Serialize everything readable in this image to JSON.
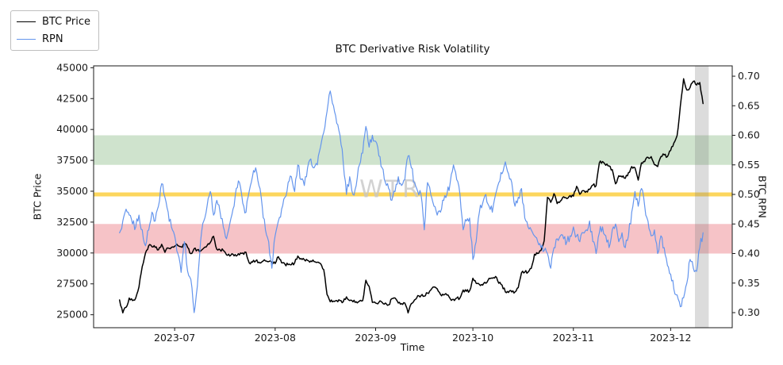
{
  "watermark": "WTR",
  "chart_data": {
    "type": "line",
    "title": "BTC Derivative Risk Volatility",
    "xlabel": "Time",
    "ylabel_left": "BTC Price",
    "ylabel_right": "BTC RPN",
    "legend_position": "upper-left-outside",
    "grid": false,
    "x_range": [
      "2023-06-06",
      "2023-12-20"
    ],
    "ylim_left": [
      23950,
      45150
    ],
    "ylim_right": [
      0.2745,
      0.7175
    ],
    "x_ticks": [
      {
        "date": "2023-07-01",
        "label": "2023-07"
      },
      {
        "date": "2023-08-01",
        "label": "2023-08"
      },
      {
        "date": "2023-09-01",
        "label": "2023-09"
      },
      {
        "date": "2023-10-01",
        "label": "2023-10"
      },
      {
        "date": "2023-11-01",
        "label": "2023-11"
      },
      {
        "date": "2023-12-01",
        "label": "2023-12"
      }
    ],
    "y_ticks_left": [
      25000,
      27500,
      30000,
      32500,
      35000,
      37500,
      40000,
      42500,
      45000
    ],
    "y_ticks_right": [
      0.3,
      0.35,
      0.4,
      0.45,
      0.5,
      0.55,
      0.6,
      0.65,
      0.7
    ],
    "h_bands": [
      {
        "name": "upper-green-zone",
        "axis": "right",
        "from": 0.55,
        "to": 0.6,
        "color": "#cfe3cd"
      },
      {
        "name": "lower-red-zone",
        "axis": "right",
        "from": 0.4,
        "to": 0.45,
        "color": "#f6c3c7"
      }
    ],
    "h_line": {
      "name": "mid-yellow-line",
      "axis": "right",
      "value": 0.5,
      "color": "#fcd65d",
      "width": 5
    },
    "v_band": {
      "name": "recent-period-highlight",
      "from": "2023-12-08T12:00:00",
      "to": "2023-12-12T18:00:00",
      "color": "rgba(128,128,128,0.28)"
    },
    "series": [
      {
        "name": "BTC Price",
        "axis": "left",
        "color": "#000000",
        "width": 1.5,
        "jitter": 130,
        "start": "2023-06-14",
        "step_days": 1,
        "values": [
          26200,
          25150,
          25600,
          26350,
          26150,
          26350,
          27250,
          28900,
          30000,
          30600,
          30500,
          30450,
          30250,
          30700,
          30050,
          30400,
          30450,
          30550,
          30600,
          30500,
          30750,
          30450,
          29950,
          30350,
          30250,
          30150,
          30400,
          30600,
          30850,
          31350,
          30300,
          30250,
          30200,
          29850,
          29750,
          29900,
          29750,
          29850,
          30000,
          30050,
          29200,
          29250,
          29350,
          29250,
          29300,
          29350,
          29300,
          29250,
          29150,
          29700,
          29200,
          29100,
          29050,
          29050,
          29200,
          29750,
          29550,
          29450,
          29400,
          29350,
          29300,
          29250,
          29150,
          28650,
          26650,
          26050,
          26100,
          26150,
          26150,
          26050,
          26450,
          26150,
          26050,
          26050,
          26100,
          26150,
          27800,
          27300,
          26000,
          25950,
          26000,
          26000,
          25950,
          25800,
          26300,
          26350,
          25950,
          25900,
          25950,
          25150,
          25900,
          26200,
          26550,
          26550,
          26500,
          26750,
          27000,
          27250,
          27100,
          26650,
          26600,
          26600,
          26300,
          26250,
          26350,
          26350,
          27000,
          26900,
          26950,
          27950,
          27550,
          27450,
          27400,
          27550,
          27950,
          27950,
          28100,
          27550,
          27400,
          26850,
          26800,
          26850,
          26850,
          27200,
          28400,
          28450,
          28450,
          28750,
          29900,
          29950,
          30200,
          31000,
          34500,
          34100,
          34800,
          34000,
          34200,
          34550,
          34400,
          34650,
          34600,
          35400,
          34750,
          35050,
          35000,
          35150,
          35500,
          35450,
          37300,
          37400,
          37100,
          37050,
          36750,
          35600,
          36250,
          36150,
          36050,
          36500,
          37000,
          36900,
          35900,
          37300,
          37400,
          37750,
          37800,
          37150,
          37000,
          37800,
          37950,
          37800,
          38300,
          38900,
          39500,
          41900,
          44100,
          43200,
          43400,
          43900,
          43600,
          43800,
          42100
        ]
      },
      {
        "name": "RPN",
        "axis": "right",
        "color": "#6495ED",
        "width": 1.2,
        "jitter": 0.0075,
        "start": "2023-06-14",
        "step_days": 1,
        "values": [
          0.435,
          0.455,
          0.475,
          0.465,
          0.45,
          0.445,
          0.465,
          0.44,
          0.413,
          0.44,
          0.47,
          0.455,
          0.48,
          0.518,
          0.495,
          0.47,
          0.445,
          0.43,
          0.4,
          0.368,
          0.42,
          0.37,
          0.356,
          0.3,
          0.345,
          0.42,
          0.455,
          0.48,
          0.505,
          0.465,
          0.49,
          0.47,
          0.445,
          0.425,
          0.45,
          0.475,
          0.51,
          0.52,
          0.485,
          0.47,
          0.505,
          0.53,
          0.545,
          0.515,
          0.48,
          0.44,
          0.42,
          0.375,
          0.43,
          0.455,
          0.475,
          0.495,
          0.52,
          0.53,
          0.505,
          0.55,
          0.525,
          0.515,
          0.545,
          0.56,
          0.545,
          0.55,
          0.58,
          0.605,
          0.64,
          0.675,
          0.65,
          0.62,
          0.6,
          0.555,
          0.5,
          0.53,
          0.5,
          0.515,
          0.55,
          0.57,
          0.615,
          0.58,
          0.6,
          0.59,
          0.565,
          0.545,
          0.52,
          0.51,
          0.49,
          0.505,
          0.53,
          0.515,
          0.525,
          0.565,
          0.545,
          0.52,
          0.505,
          0.5,
          0.44,
          0.52,
          0.5,
          0.48,
          0.465,
          0.47,
          0.49,
          0.5,
          0.52,
          0.55,
          0.525,
          0.5,
          0.44,
          0.455,
          0.46,
          0.39,
          0.42,
          0.47,
          0.485,
          0.5,
          0.48,
          0.47,
          0.5,
          0.52,
          0.535,
          0.555,
          0.535,
          0.52,
          0.48,
          0.495,
          0.51,
          0.46,
          0.445,
          0.44,
          0.43,
          0.42,
          0.41,
          0.405,
          0.4,
          0.375,
          0.41,
          0.425,
          0.43,
          0.425,
          0.42,
          0.43,
          0.445,
          0.43,
          0.42,
          0.435,
          0.44,
          0.455,
          0.42,
          0.4,
          0.435,
          0.445,
          0.43,
          0.41,
          0.44,
          0.45,
          0.42,
          0.435,
          0.41,
          0.43,
          0.47,
          0.505,
          0.48,
          0.51,
          0.48,
          0.455,
          0.43,
          0.44,
          0.4,
          0.43,
          0.41,
          0.38,
          0.365,
          0.34,
          0.33,
          0.31,
          0.325,
          0.35,
          0.39,
          0.375,
          0.37,
          0.41,
          0.435
        ]
      }
    ]
  }
}
